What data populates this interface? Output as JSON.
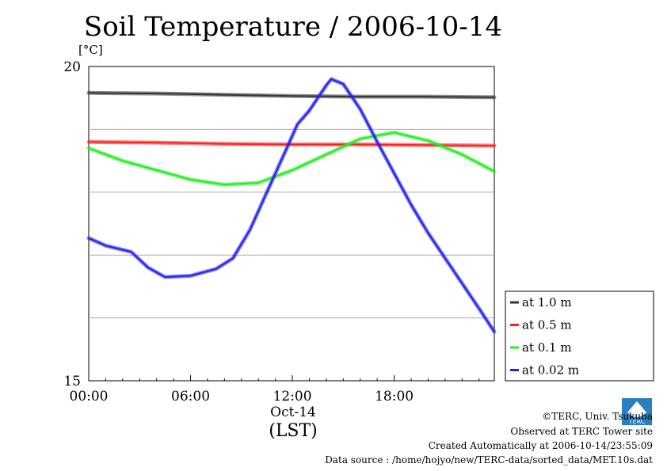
{
  "chart_data": {
    "type": "line",
    "title": "Soil Temperature / 2006-10-14",
    "ylabel": "[°C]",
    "xlabel": "(LST)",
    "date_label": "Oct-14",
    "x_unit": "hours",
    "xlim": [
      0,
      23.9
    ],
    "ylim": [
      15,
      20
    ],
    "y_ticks": [
      15,
      20
    ],
    "y_gridlines": [
      16,
      17,
      18,
      19
    ],
    "x_ticks": [
      0,
      6,
      12,
      18
    ],
    "x_tick_labels": [
      "00:00",
      "06:00",
      "12:00",
      "18:00"
    ],
    "grid": true,
    "legend_position": "right",
    "series": [
      {
        "name": "at 1.0 m",
        "color": "#333333",
        "points": [
          [
            0,
            19.58
          ],
          [
            4,
            19.57
          ],
          [
            8,
            19.55
          ],
          [
            12,
            19.53
          ],
          [
            16,
            19.52
          ],
          [
            20,
            19.52
          ],
          [
            23.9,
            19.51
          ]
        ]
      },
      {
        "name": "at 0.5 m",
        "color": "#ff2020",
        "points": [
          [
            0,
            18.8
          ],
          [
            4,
            18.79
          ],
          [
            8,
            18.77
          ],
          [
            12,
            18.76
          ],
          [
            16,
            18.76
          ],
          [
            20,
            18.75
          ],
          [
            23.9,
            18.74
          ]
        ]
      },
      {
        "name": "at 0.1 m",
        "color": "#22ee22",
        "points": [
          [
            0,
            18.7
          ],
          [
            2,
            18.5
          ],
          [
            4,
            18.35
          ],
          [
            6,
            18.2
          ],
          [
            8,
            18.12
          ],
          [
            10,
            18.15
          ],
          [
            12,
            18.35
          ],
          [
            14,
            18.6
          ],
          [
            16,
            18.85
          ],
          [
            18,
            18.95
          ],
          [
            20,
            18.82
          ],
          [
            22,
            18.6
          ],
          [
            23.9,
            18.33
          ]
        ]
      },
      {
        "name": "at 0.02 m",
        "color": "#2222ee",
        "points": [
          [
            0,
            17.27
          ],
          [
            1,
            17.15
          ],
          [
            2.5,
            17.05
          ],
          [
            3.5,
            16.8
          ],
          [
            4.5,
            16.65
          ],
          [
            6,
            16.67
          ],
          [
            7.5,
            16.78
          ],
          [
            8.5,
            16.95
          ],
          [
            9.5,
            17.4
          ],
          [
            10.5,
            18.0
          ],
          [
            11.5,
            18.6
          ],
          [
            12.3,
            19.08
          ],
          [
            13,
            19.3
          ],
          [
            14,
            19.7
          ],
          [
            14.3,
            19.8
          ],
          [
            15,
            19.72
          ],
          [
            16,
            19.32
          ],
          [
            17,
            18.8
          ],
          [
            18,
            18.3
          ],
          [
            19,
            17.8
          ],
          [
            20,
            17.35
          ],
          [
            21,
            16.95
          ],
          [
            22,
            16.55
          ],
          [
            23,
            16.15
          ],
          [
            23.9,
            15.78
          ]
        ]
      }
    ]
  },
  "credits": {
    "copyright": "©TERC, Univ. Tsukuba",
    "site": "Observed at TERC Tower site",
    "created": "Created Automatically at 2006-10-14/23:55:09",
    "source": "Data source : /home/hojyo/new/TERC-data/sorted_data/MET.10s.dat"
  },
  "logo_text": "TERC"
}
